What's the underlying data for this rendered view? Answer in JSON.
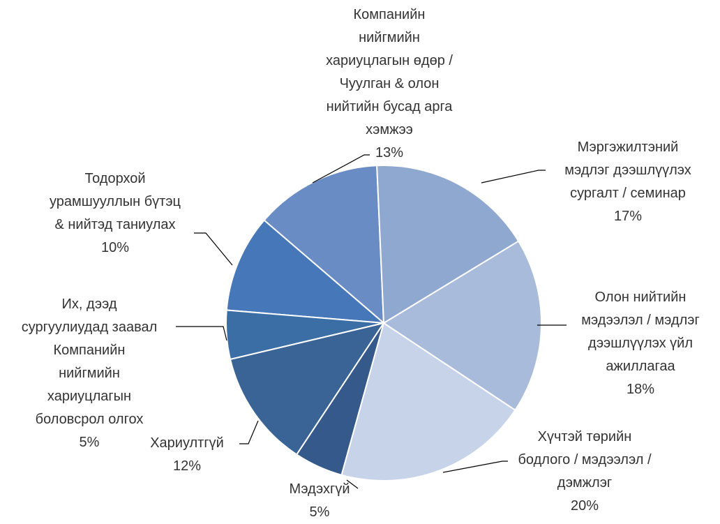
{
  "chart_data": {
    "type": "pie",
    "categories": [
      "Мэргэжилтэний\nмэдлэг дээшлүүлэх\nсургалт / семинар",
      "Олон нийтийн\nмэдээлэл / мэдлэг\nдээшлүүлэх үйл\nажиллагаа",
      "Хүчтэй төрийн\nбодлого / мэдээлэл /\nдэмжлэг",
      "Мэдэхгүй",
      "Хариултгүй",
      "Их, дээд\nсургуулиудад заавал\nКомпанийн\nнийгмийн\nхариуцлагын\nболовсрол олгох",
      "Тодорхой\nурамшууллын бүтэц\n& нийтэд таниулах",
      "Компанийн\nнийгмийн\nхариуцлагын өдөр /\nЧуулган & олон\nнийтийн бусад арга\nхэмжээ"
    ],
    "values": [
      17,
      18,
      20,
      5,
      12,
      5,
      10,
      13
    ],
    "value_labels": [
      "17%",
      "18%",
      "20%",
      "5%",
      "12%",
      "5%",
      "10%",
      "13%"
    ],
    "colors": [
      "#8fa8d0",
      "#a9bbdb",
      "#c7d3e8",
      "#34598a",
      "#3b6496",
      "#3c6ea6",
      "#4577b9",
      "#6a8cc5"
    ]
  }
}
